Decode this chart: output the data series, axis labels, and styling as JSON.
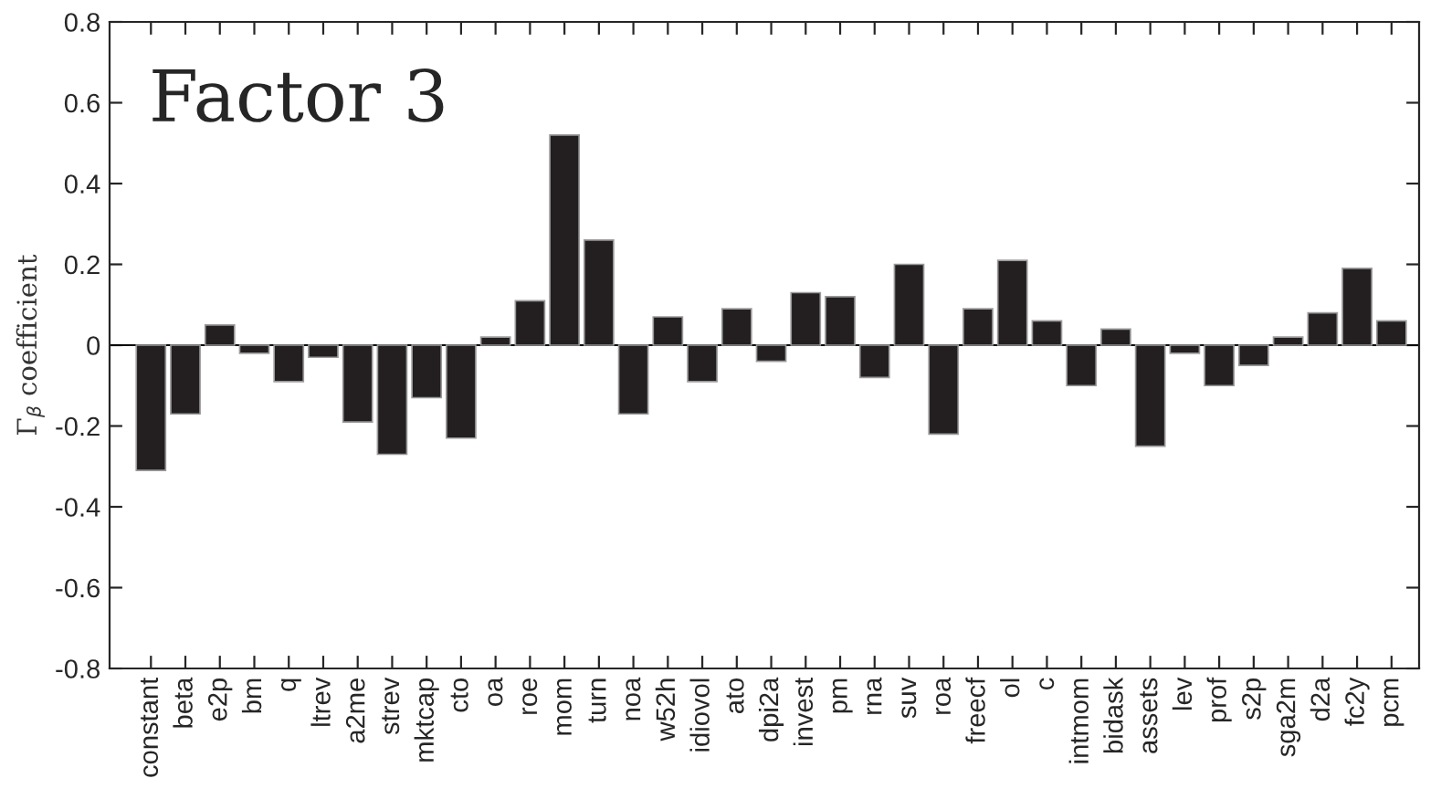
{
  "chart_data": {
    "type": "bar",
    "title": "Factor 3",
    "ylabel": "Γ$_{β}$ coefficient",
    "categories": [
      "constant",
      "beta",
      "e2p",
      "bm",
      "q",
      "ltrev",
      "a2me",
      "strev",
      "mktcap",
      "cto",
      "oa",
      "roe",
      "mom",
      "turn",
      "noa",
      "w52h",
      "idiovol",
      "ato",
      "dpi2a",
      "invest",
      "pm",
      "rna",
      "suv",
      "roa",
      "freecf",
      "ol",
      "c",
      "intmom",
      "bidask",
      "assets",
      "lev",
      "prof",
      "s2p",
      "sga2m",
      "d2a",
      "fc2y",
      "pcm"
    ],
    "values": [
      -0.31,
      -0.17,
      0.05,
      -0.02,
      -0.09,
      -0.03,
      -0.19,
      -0.27,
      -0.13,
      -0.23,
      0.02,
      0.11,
      0.52,
      0.26,
      -0.17,
      0.07,
      -0.09,
      0.09,
      -0.04,
      0.13,
      0.12,
      -0.08,
      0.2,
      -0.22,
      0.09,
      0.21,
      0.06,
      -0.1,
      0.04,
      -0.25,
      -0.02,
      -0.1,
      -0.05,
      0.02,
      0.08,
      0.19,
      0.06
    ],
    "color": "#231f20",
    "ylim": [
      -0.8,
      0.8
    ],
    "yticks": [
      -0.8,
      -0.6,
      -0.4,
      -0.2,
      0,
      0.2,
      0.4,
      0.6,
      0.8
    ],
    "ref_lines": [
      {
        "axis": "y",
        "value": 0,
        "color": "#000000"
      }
    ],
    "legend": false
  }
}
